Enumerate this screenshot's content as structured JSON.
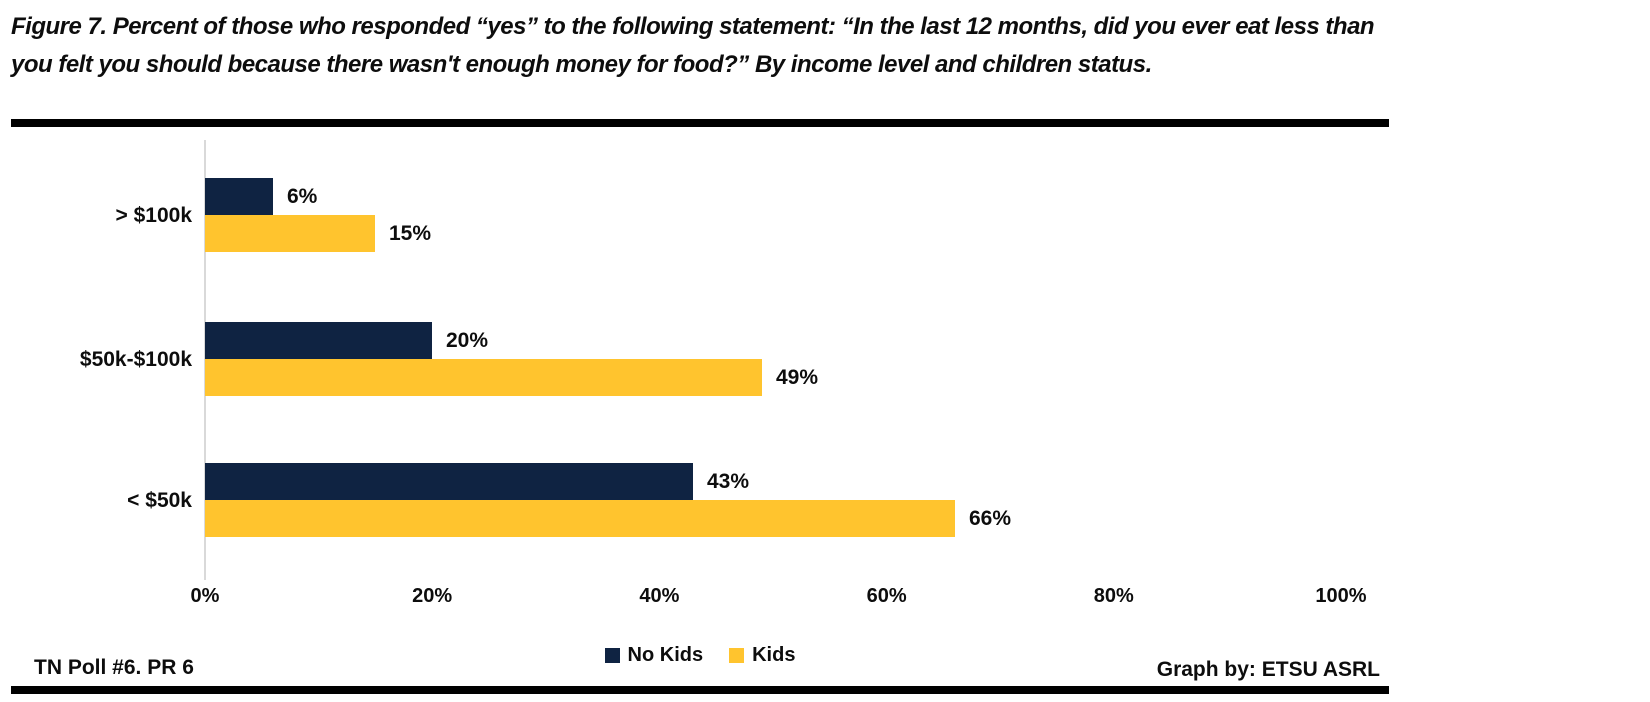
{
  "figure": {
    "title_lines": [
      "Figure 7. Percent of those who responded “yes” to the following statement: “In the last 12 months, did you ever eat less than",
      "you felt you should because there wasn't enough money for food?” By income level and children status."
    ]
  },
  "chart_data": {
    "type": "bar",
    "orientation": "horizontal",
    "title": "",
    "categories": [
      "> $100k",
      "$50k-$100k",
      "< $50k"
    ],
    "series": [
      {
        "name": "No Kids",
        "color": "#0f2342",
        "values": [
          6,
          20,
          43
        ]
      },
      {
        "name": "Kids",
        "color": "#ffc42e",
        "values": [
          15,
          49,
          66
        ]
      }
    ],
    "data_labels": true,
    "value_label_suffix": "%",
    "xlim": [
      0,
      100
    ],
    "x_tick_labels": [
      "0%",
      "20%",
      "40%",
      "60%",
      "80%",
      "100%"
    ],
    "grid": false,
    "legend_position": "bottom-center"
  },
  "colors": {
    "navy": "#0f2342",
    "gold": "#ffc42e",
    "axis_line": "#d9d9d9",
    "rule": "#000000"
  },
  "footer": {
    "left": "TN Poll #6. PR 6",
    "right": "Graph by: ETSU ASRL"
  }
}
